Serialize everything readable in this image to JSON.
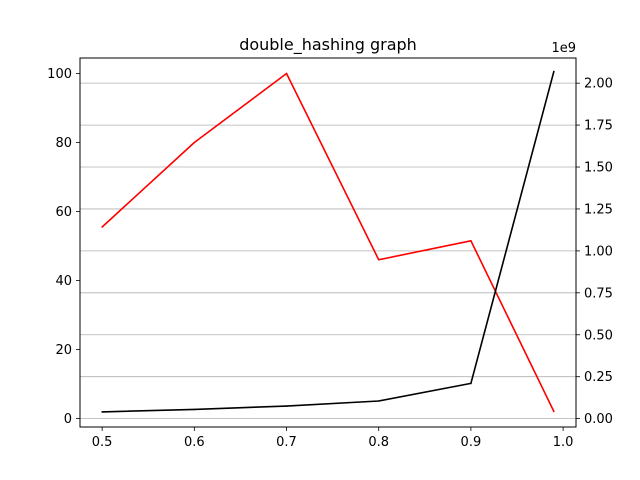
{
  "chart_data": {
    "type": "line",
    "title": "double_hashing graph",
    "x": [
      0.5,
      0.6,
      0.7,
      0.8,
      0.9,
      0.99
    ],
    "xlim": [
      0.476,
      1.014
    ],
    "x_ticks": [
      0.5,
      0.6,
      0.7,
      0.8,
      0.9,
      1.0
    ],
    "x_tick_labels": [
      "0.5",
      "0.6",
      "0.7",
      "0.8",
      "0.9",
      "1.0"
    ],
    "left_axis": {
      "ylim": [
        -2.5,
        104.5
      ],
      "ticks": [
        0,
        20,
        40,
        60,
        80,
        100
      ],
      "tick_labels": [
        "0",
        "20",
        "40",
        "60",
        "80",
        "100"
      ]
    },
    "right_axis": {
      "offset_label": "1e9",
      "ylim": [
        -0.05,
        2.15
      ],
      "ticks": [
        0.0,
        0.25,
        0.5,
        0.75,
        1.0,
        1.25,
        1.5,
        1.75,
        2.0
      ],
      "tick_labels": [
        "0.00",
        "0.25",
        "0.50",
        "0.75",
        "1.00",
        "1.25",
        "1.50",
        "1.75",
        "2.00"
      ]
    },
    "series": [
      {
        "axis": "left",
        "color": "#ff0000",
        "values": [
          55.5,
          80.0,
          100.0,
          46.0,
          51.5,
          2.0
        ]
      },
      {
        "axis": "right",
        "color": "#000000",
        "values": [
          0.04,
          0.055,
          0.075,
          0.105,
          0.21,
          2.07
        ]
      }
    ],
    "grid": "horizontal",
    "legend": "none"
  }
}
